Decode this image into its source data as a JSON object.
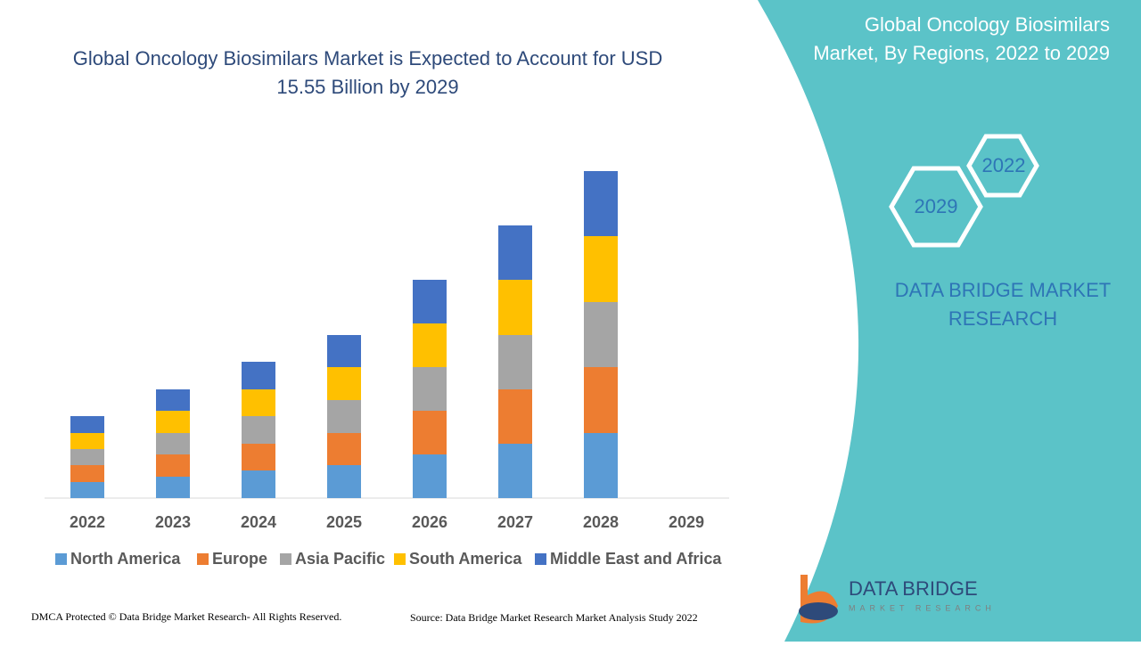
{
  "chart_data": {
    "type": "stacked-bar",
    "title": "Global Oncology Biosimilars Market is Expected to Account for USD 15.55 Billion by 2029",
    "categories": [
      "2022",
      "2023",
      "2024",
      "2025",
      "2026",
      "2027",
      "2028",
      "2029"
    ],
    "series": [
      {
        "name": "North America",
        "color": "#5b9bd5",
        "values": [
          18,
          24,
          31,
          37,
          49,
          61,
          73,
          null
        ]
      },
      {
        "name": "Europe",
        "color": "#ed7d31",
        "values": [
          19,
          25,
          30,
          36,
          49,
          61,
          74,
          null
        ]
      },
      {
        "name": "Asia Pacific",
        "color": "#a5a5a5",
        "values": [
          18,
          24,
          31,
          37,
          49,
          61,
          73,
          null
        ]
      },
      {
        "name": "South America",
        "color": "#ffc000",
        "values": [
          18,
          25,
          30,
          37,
          49,
          62,
          74,
          null
        ]
      },
      {
        "name": "Middle East and Africa",
        "color": "#4472c4",
        "values": [
          19,
          24,
          31,
          36,
          49,
          61,
          73,
          null
        ]
      }
    ]
  },
  "panel": {
    "title": "Global Oncology Biosimilars Market, By Regions, 2022 to 2029",
    "hex_start": "2022",
    "hex_end": "2029",
    "brand": "DATA BRIDGE MARKET RESEARCH"
  },
  "logo": {
    "name": "DATA BRIDGE",
    "tagline": "MARKET RESEARCH"
  },
  "footer": {
    "copyright": "DMCA Protected © Data Bridge Market Research- All Rights Reserved.",
    "source": "Source: Data Bridge Market Research Market Analysis Study 2022"
  }
}
